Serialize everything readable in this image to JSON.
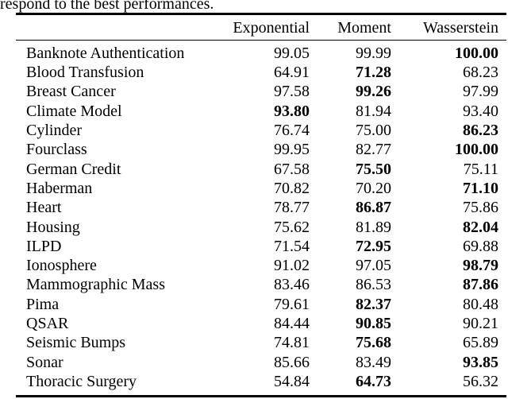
{
  "caption_fragment": "respond to the best performances.",
  "colors": {
    "text": "#000000",
    "rule": "#000000",
    "background": "#ffffff"
  },
  "table": {
    "columns": [
      "Exponential",
      "Moment",
      "Wasserstein"
    ],
    "rows": [
      {
        "name": "Banknote Authentication",
        "values": [
          "99.05",
          "99.99",
          "100.00"
        ],
        "bold": 2
      },
      {
        "name": "Blood Transfusion",
        "values": [
          "64.91",
          "71.28",
          "68.23"
        ],
        "bold": 1
      },
      {
        "name": "Breast Cancer",
        "values": [
          "97.58",
          "99.26",
          "97.99"
        ],
        "bold": 1
      },
      {
        "name": "Climate Model",
        "values": [
          "93.80",
          "81.94",
          "93.40"
        ],
        "bold": 0
      },
      {
        "name": "Cylinder",
        "values": [
          "76.74",
          "75.00",
          "86.23"
        ],
        "bold": 2
      },
      {
        "name": "Fourclass",
        "values": [
          "99.95",
          "82.77",
          "100.00"
        ],
        "bold": 2
      },
      {
        "name": "German Credit",
        "values": [
          "67.58",
          "75.50",
          "75.11"
        ],
        "bold": 1
      },
      {
        "name": "Haberman",
        "values": [
          "70.82",
          "70.20",
          "71.10"
        ],
        "bold": 2
      },
      {
        "name": "Heart",
        "values": [
          "78.77",
          "86.87",
          "75.86"
        ],
        "bold": 1
      },
      {
        "name": "Housing",
        "values": [
          "75.62",
          "81.89",
          "82.04"
        ],
        "bold": 2
      },
      {
        "name": "ILPD",
        "values": [
          "71.54",
          "72.95",
          "69.88"
        ],
        "bold": 1
      },
      {
        "name": "Ionosphere",
        "values": [
          "91.02",
          "97.05",
          "98.79"
        ],
        "bold": 2
      },
      {
        "name": "Mammographic Mass",
        "values": [
          "83.46",
          "86.53",
          "87.86"
        ],
        "bold": 2
      },
      {
        "name": "Pima",
        "values": [
          "79.61",
          "82.37",
          "80.48"
        ],
        "bold": 1
      },
      {
        "name": "QSAR",
        "values": [
          "84.44",
          "90.85",
          "90.21"
        ],
        "bold": 1
      },
      {
        "name": "Seismic Bumps",
        "values": [
          "74.81",
          "75.68",
          "65.89"
        ],
        "bold": 1
      },
      {
        "name": "Sonar",
        "values": [
          "85.66",
          "83.49",
          "93.85"
        ],
        "bold": 2
      },
      {
        "name": "Thoracic Surgery",
        "values": [
          "54.84",
          "64.73",
          "56.32"
        ],
        "bold": 1
      }
    ]
  }
}
